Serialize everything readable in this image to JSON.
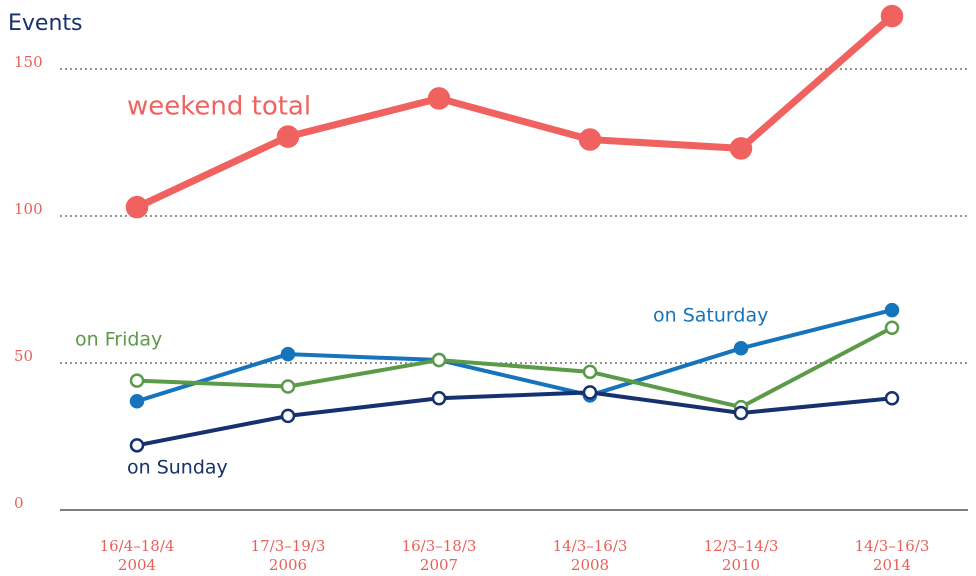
{
  "chart_data": {
    "type": "line",
    "y_label": "Events",
    "categories": [
      [
        "16/4–18/4",
        "2004"
      ],
      [
        "17/3–19/3",
        "2006"
      ],
      [
        "16/3–18/3",
        "2007"
      ],
      [
        "14/3–16/3",
        "2008"
      ],
      [
        "12/3–14/3",
        "2010"
      ],
      [
        "14/3–16/3",
        "2014"
      ]
    ],
    "series": [
      {
        "name": "weekend total",
        "color": "#f0625f",
        "marker": "filled",
        "values": [
          103,
          127,
          140,
          126,
          123,
          168
        ]
      },
      {
        "name": "on Saturday",
        "color": "#1574bb",
        "marker": "filled",
        "values": [
          37,
          53,
          51,
          39,
          55,
          68
        ]
      },
      {
        "name": "on Friday",
        "color": "#5b9a48",
        "marker": "open",
        "values": [
          44,
          42,
          51,
          47,
          35,
          62
        ]
      },
      {
        "name": "on Sunday",
        "color": "#17306e",
        "marker": "open",
        "values": [
          22,
          32,
          38,
          40,
          33,
          38
        ]
      }
    ],
    "ylim": [
      0,
      170
    ],
    "yticks": [
      0,
      50,
      100,
      150
    ],
    "grid": true
  }
}
